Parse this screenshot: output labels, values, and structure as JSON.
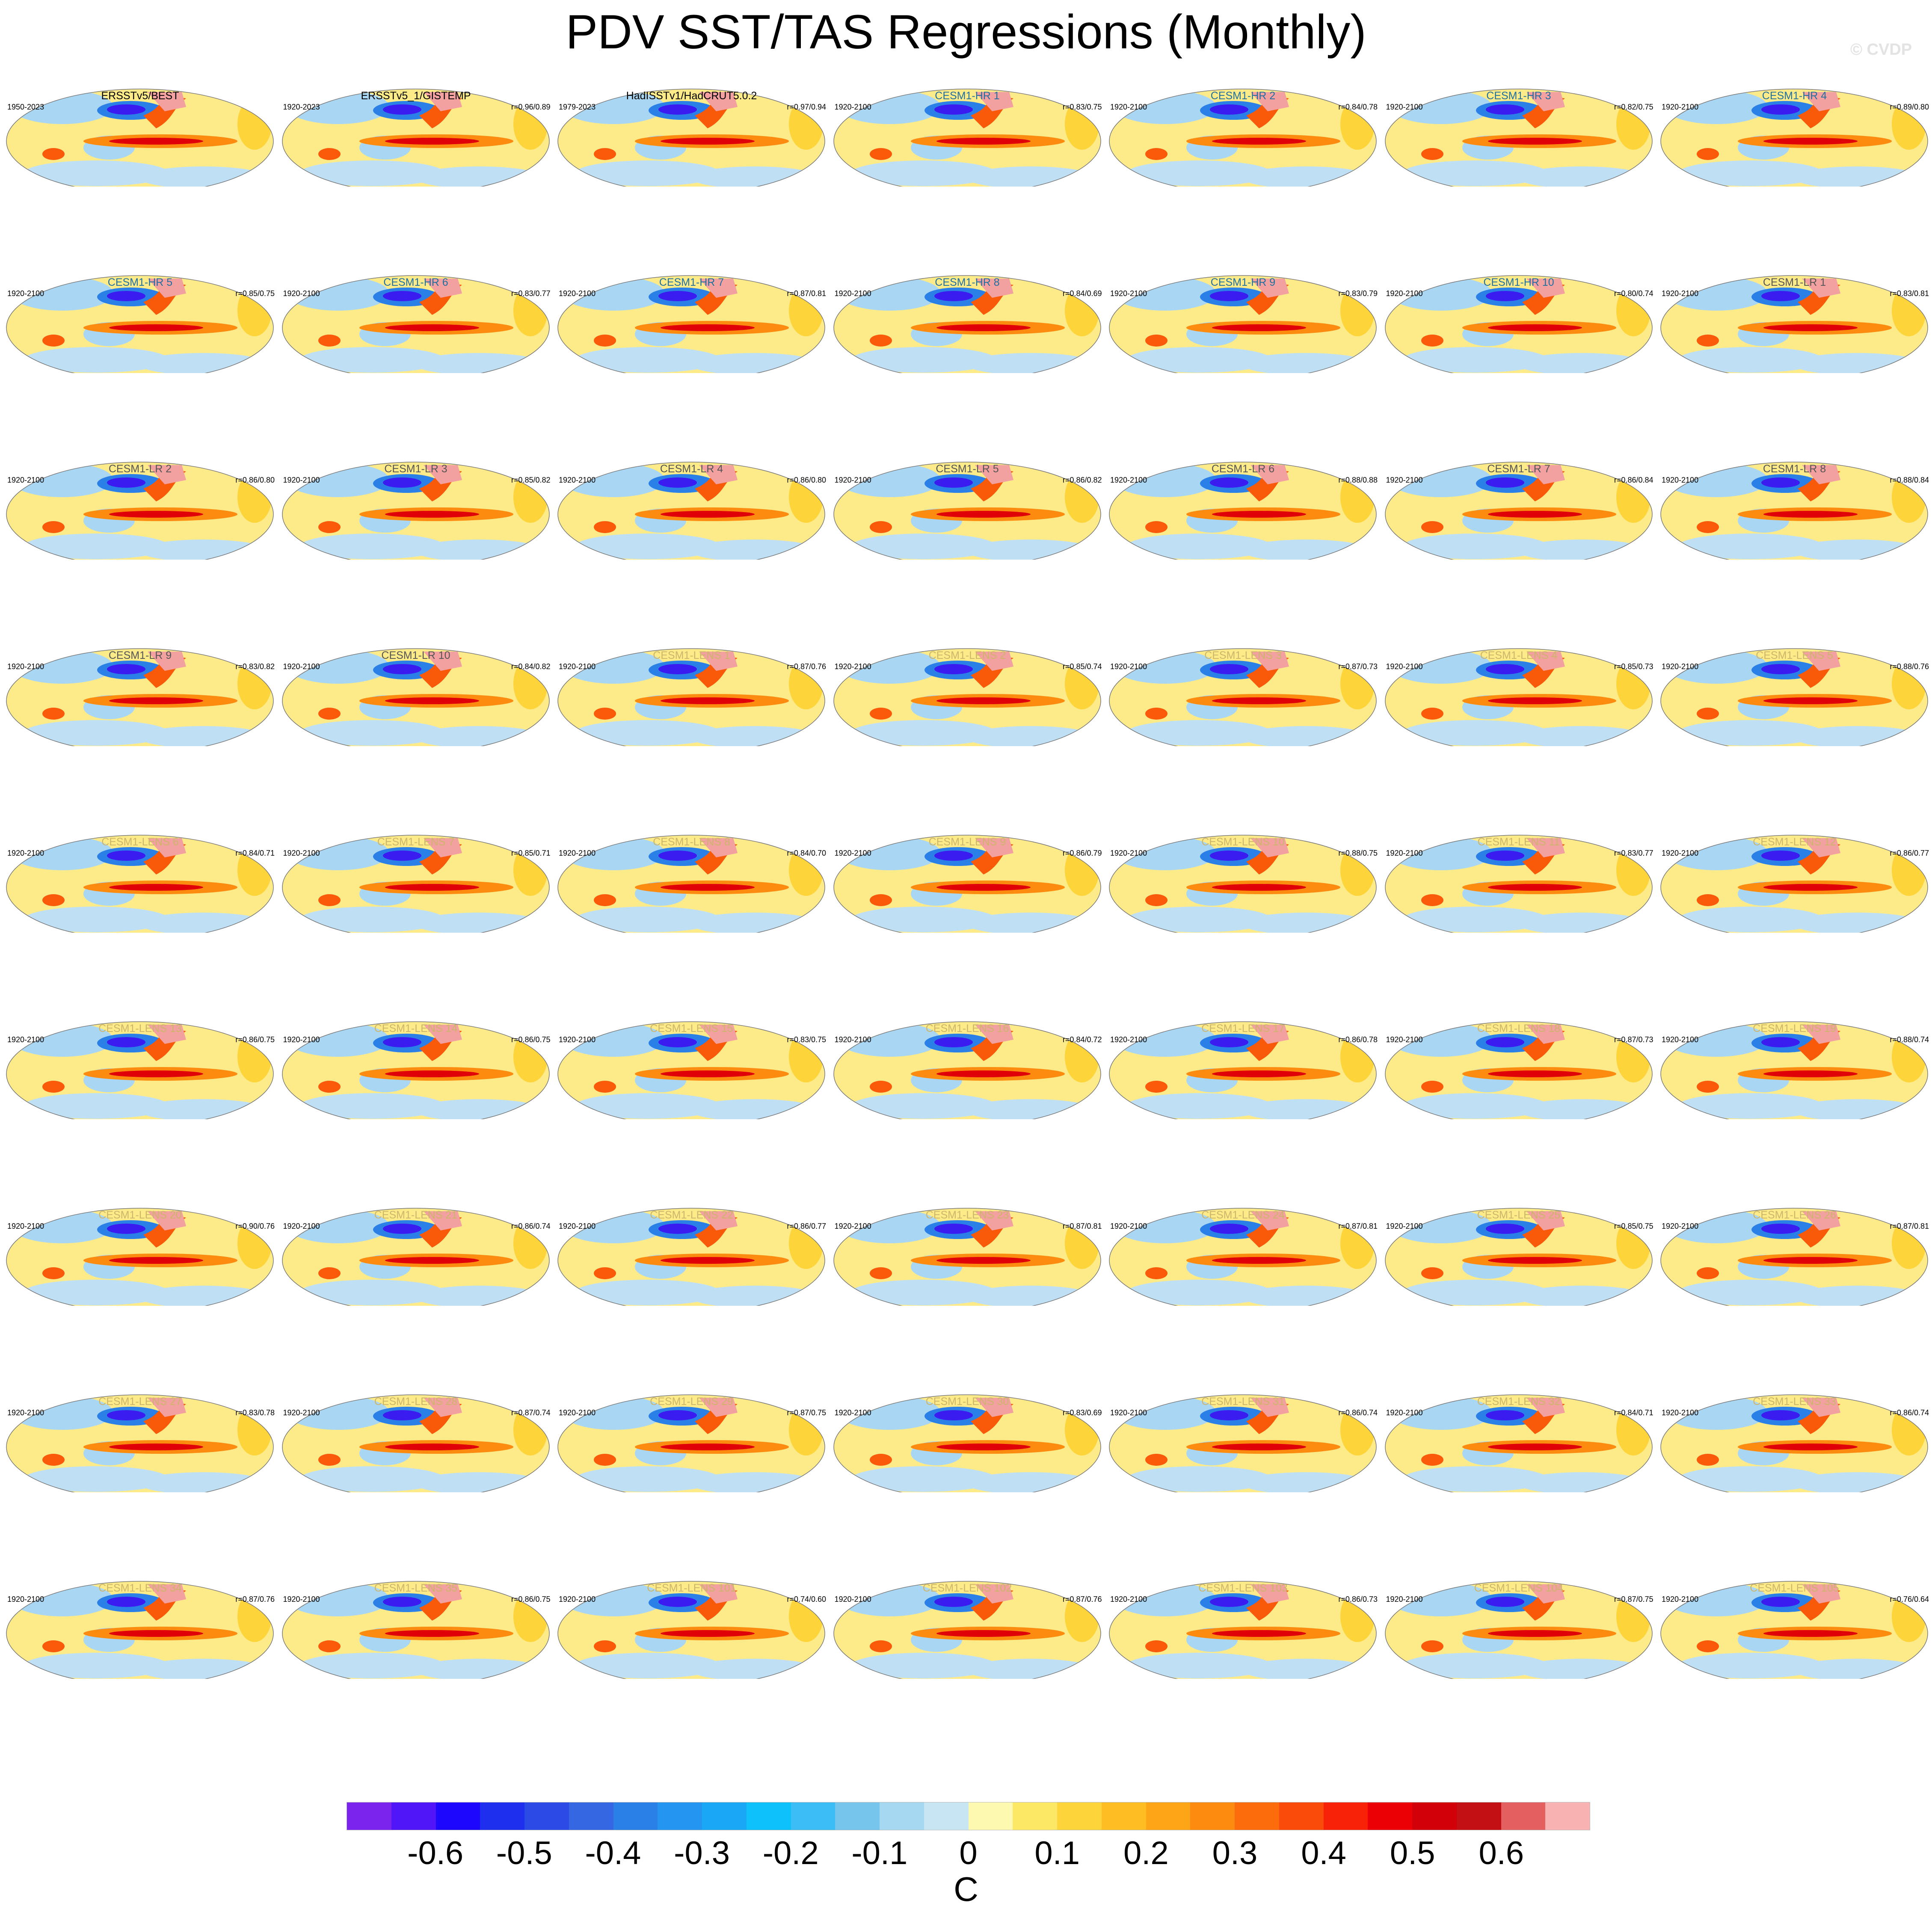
{
  "title": "PDV SST/TAS Regressions (Monthly)",
  "copyright": "© CVDP",
  "panel_title_colors": {
    "obs": "#000000",
    "hr": "#1f6fa0",
    "lr": "#555555",
    "lens": "#cdb56b"
  },
  "panels": [
    {
      "title": "ERSSTv5/BEST",
      "period": "1950-2023",
      "corr": "",
      "group": "obs"
    },
    {
      "title": "ERSSTv5_1/GISTEMP",
      "period": "1920-2023",
      "corr": "r=0.96/0.89",
      "group": "obs"
    },
    {
      "title": "HadISSTv1/HadCRUT5.0.2",
      "period": "1979-2023",
      "corr": "r=0.97/0.94",
      "group": "obs"
    },
    {
      "title": "CESM1-HR 1",
      "period": "1920-2100",
      "corr": "r=0.83/0.75",
      "group": "hr"
    },
    {
      "title": "CESM1-HR 2",
      "period": "1920-2100",
      "corr": "r=0.84/0.78",
      "group": "hr"
    },
    {
      "title": "CESM1-HR 3",
      "period": "1920-2100",
      "corr": "r=0.82/0.75",
      "group": "hr"
    },
    {
      "title": "CESM1-HR 4",
      "period": "1920-2100",
      "corr": "r=0.89/0.80",
      "group": "hr"
    },
    {
      "title": "CESM1-HR 5",
      "period": "1920-2100",
      "corr": "r=0.85/0.75",
      "group": "hr"
    },
    {
      "title": "CESM1-HR 6",
      "period": "1920-2100",
      "corr": "r=0.83/0.77",
      "group": "hr"
    },
    {
      "title": "CESM1-HR 7",
      "period": "1920-2100",
      "corr": "r=0.87/0.81",
      "group": "hr"
    },
    {
      "title": "CESM1-HR 8",
      "period": "1920-2100",
      "corr": "r=0.84/0.69",
      "group": "hr"
    },
    {
      "title": "CESM1-HR 9",
      "period": "1920-2100",
      "corr": "r=0.83/0.79",
      "group": "hr"
    },
    {
      "title": "CESM1-HR 10",
      "period": "1920-2100",
      "corr": "r=0.80/0.74",
      "group": "hr"
    },
    {
      "title": "CESM1-LR 1",
      "period": "1920-2100",
      "corr": "r=0.83/0.81",
      "group": "lr"
    },
    {
      "title": "CESM1-LR 2",
      "period": "1920-2100",
      "corr": "r=0.86/0.80",
      "group": "lr"
    },
    {
      "title": "CESM1-LR 3",
      "period": "1920-2100",
      "corr": "r=0.85/0.82",
      "group": "lr"
    },
    {
      "title": "CESM1-LR 4",
      "period": "1920-2100",
      "corr": "r=0.86/0.80",
      "group": "lr"
    },
    {
      "title": "CESM1-LR 5",
      "period": "1920-2100",
      "corr": "r=0.86/0.82",
      "group": "lr"
    },
    {
      "title": "CESM1-LR 6",
      "period": "1920-2100",
      "corr": "r=0.88/0.88",
      "group": "lr"
    },
    {
      "title": "CESM1-LR 7",
      "period": "1920-2100",
      "corr": "r=0.86/0.84",
      "group": "lr"
    },
    {
      "title": "CESM1-LR 8",
      "period": "1920-2100",
      "corr": "r=0.88/0.84",
      "group": "lr"
    },
    {
      "title": "CESM1-LR 9",
      "period": "1920-2100",
      "corr": "r=0.83/0.82",
      "group": "lr"
    },
    {
      "title": "CESM1-LR 10",
      "period": "1920-2100",
      "corr": "r=0.84/0.82",
      "group": "lr"
    },
    {
      "title": "CESM1-LENS 1",
      "period": "1920-2100",
      "corr": "r=0.87/0.76",
      "group": "lens"
    },
    {
      "title": "CESM1-LENS 2",
      "period": "1920-2100",
      "corr": "r=0.85/0.74",
      "group": "lens"
    },
    {
      "title": "CESM1-LENS 3",
      "period": "1920-2100",
      "corr": "r=0.87/0.73",
      "group": "lens"
    },
    {
      "title": "CESM1-LENS 4",
      "period": "1920-2100",
      "corr": "r=0.85/0.73",
      "group": "lens"
    },
    {
      "title": "CESM1-LENS 5",
      "period": "1920-2100",
      "corr": "r=0.88/0.76",
      "group": "lens"
    },
    {
      "title": "CESM1-LENS 6",
      "period": "1920-2100",
      "corr": "r=0.84/0.71",
      "group": "lens"
    },
    {
      "title": "CESM1-LENS 7",
      "period": "1920-2100",
      "corr": "r=0.85/0.71",
      "group": "lens"
    },
    {
      "title": "CESM1-LENS 8",
      "period": "1920-2100",
      "corr": "r=0.84/0.70",
      "group": "lens"
    },
    {
      "title": "CESM1-LENS 9",
      "period": "1920-2100",
      "corr": "r=0.86/0.79",
      "group": "lens"
    },
    {
      "title": "CESM1-LENS 10",
      "period": "1920-2100",
      "corr": "r=0.88/0.75",
      "group": "lens"
    },
    {
      "title": "CESM1-LENS 11",
      "period": "1920-2100",
      "corr": "r=0.83/0.77",
      "group": "lens"
    },
    {
      "title": "CESM1-LENS 12",
      "period": "1920-2100",
      "corr": "r=0.86/0.77",
      "group": "lens"
    },
    {
      "title": "CESM1-LENS 13",
      "period": "1920-2100",
      "corr": "r=0.86/0.75",
      "group": "lens"
    },
    {
      "title": "CESM1-LENS 14",
      "period": "1920-2100",
      "corr": "r=0.86/0.75",
      "group": "lens"
    },
    {
      "title": "CESM1-LENS 15",
      "period": "1920-2100",
      "corr": "r=0.83/0.75",
      "group": "lens"
    },
    {
      "title": "CESM1-LENS 16",
      "period": "1920-2100",
      "corr": "r=0.84/0.72",
      "group": "lens"
    },
    {
      "title": "CESM1-LENS 17",
      "period": "1920-2100",
      "corr": "r=0.86/0.78",
      "group": "lens"
    },
    {
      "title": "CESM1-LENS 18",
      "period": "1920-2100",
      "corr": "r=0.87/0.73",
      "group": "lens"
    },
    {
      "title": "CESM1-LENS 19",
      "period": "1920-2100",
      "corr": "r=0.88/0.74",
      "group": "lens"
    },
    {
      "title": "CESM1-LENS 20",
      "period": "1920-2100",
      "corr": "r=0.90/0.76",
      "group": "lens"
    },
    {
      "title": "CESM1-LENS 21",
      "period": "1920-2100",
      "corr": "r=0.86/0.74",
      "group": "lens"
    },
    {
      "title": "CESM1-LENS 22",
      "period": "1920-2100",
      "corr": "r=0.86/0.77",
      "group": "lens"
    },
    {
      "title": "CESM1-LENS 23",
      "period": "1920-2100",
      "corr": "r=0.87/0.81",
      "group": "lens"
    },
    {
      "title": "CESM1-LENS 24",
      "period": "1920-2100",
      "corr": "r=0.87/0.81",
      "group": "lens"
    },
    {
      "title": "CESM1-LENS 25",
      "period": "1920-2100",
      "corr": "r=0.85/0.75",
      "group": "lens"
    },
    {
      "title": "CESM1-LENS 26",
      "period": "1920-2100",
      "corr": "r=0.87/0.81",
      "group": "lens"
    },
    {
      "title": "CESM1-LENS 27",
      "period": "1920-2100",
      "corr": "r=0.83/0.78",
      "group": "lens"
    },
    {
      "title": "CESM1-LENS 28",
      "period": "1920-2100",
      "corr": "r=0.87/0.74",
      "group": "lens"
    },
    {
      "title": "CESM1-LENS 29",
      "period": "1920-2100",
      "corr": "r=0.87/0.75",
      "group": "lens"
    },
    {
      "title": "CESM1-LENS 30",
      "period": "1920-2100",
      "corr": "r=0.83/0.69",
      "group": "lens"
    },
    {
      "title": "CESM1-LENS 31",
      "period": "1920-2100",
      "corr": "r=0.86/0.74",
      "group": "lens"
    },
    {
      "title": "CESM1-LENS 32",
      "period": "1920-2100",
      "corr": "r=0.84/0.71",
      "group": "lens"
    },
    {
      "title": "CESM1-LENS 33",
      "period": "1920-2100",
      "corr": "r=0.86/0.74",
      "group": "lens"
    },
    {
      "title": "CESM1-LENS 34",
      "period": "1920-2100",
      "corr": "r=0.87/0.76",
      "group": "lens"
    },
    {
      "title": "CESM1-LENS 35",
      "period": "1920-2100",
      "corr": "r=0.86/0.75",
      "group": "lens"
    },
    {
      "title": "CESM1-LENS 101",
      "period": "1920-2100",
      "corr": "r=0.74/0.60",
      "group": "lens"
    },
    {
      "title": "CESM1-LENS 102",
      "period": "1920-2100",
      "corr": "r=0.87/0.76",
      "group": "lens"
    },
    {
      "title": "CESM1-LENS 103",
      "period": "1920-2100",
      "corr": "r=0.86/0.73",
      "group": "lens"
    },
    {
      "title": "CESM1-LENS 104",
      "period": "1920-2100",
      "corr": "r=0.87/0.75",
      "group": "lens"
    },
    {
      "title": "CESM1-LENS 105",
      "period": "1920-2100",
      "corr": "r=0.76/0.64",
      "group": "lens"
    }
  ],
  "colorbar": {
    "unit": "C",
    "colors": [
      "#7b24ee",
      "#5016f7",
      "#1d07fc",
      "#1e2fee",
      "#2b4ae6",
      "#3467e1",
      "#2a80e6",
      "#2496f1",
      "#1aa7f6",
      "#0fc1fb",
      "#3dbdf6",
      "#76c5ed",
      "#a7d8f1",
      "#c8e5f3",
      "#fef9b0",
      "#fde865",
      "#fdd43a",
      "#fdbd23",
      "#fda417",
      "#fd8b10",
      "#fc6c0c",
      "#fb4b0a",
      "#f82208",
      "#eb0006",
      "#d20008",
      "#c21014",
      "#e46060",
      "#f8b2b2"
    ],
    "ticks": [
      "-0.6",
      "-0.5",
      "-0.4",
      "-0.3",
      "-0.2",
      "-0.1",
      "0",
      "0.1",
      "0.2",
      "0.3",
      "0.4",
      "0.5",
      "0.6"
    ]
  }
}
